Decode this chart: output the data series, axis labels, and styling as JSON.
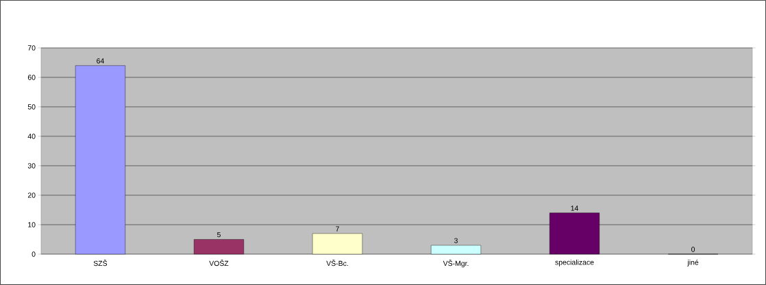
{
  "chart_data": {
    "type": "bar",
    "categories": [
      "SZŠ",
      "VOŠZ",
      "VŠ-Bc.",
      "VŠ-Mgr.",
      "specializace",
      "jiné"
    ],
    "values": [
      64,
      5,
      7,
      3,
      14,
      0
    ],
    "colors": [
      "#9999ff",
      "#993366",
      "#ffffcc",
      "#ccffff",
      "#660066",
      "#ff8080"
    ],
    "ylim": [
      0,
      70
    ],
    "yticks": [
      0,
      10,
      20,
      30,
      40,
      50,
      60,
      70
    ],
    "grid": "y",
    "data_labels": true
  }
}
